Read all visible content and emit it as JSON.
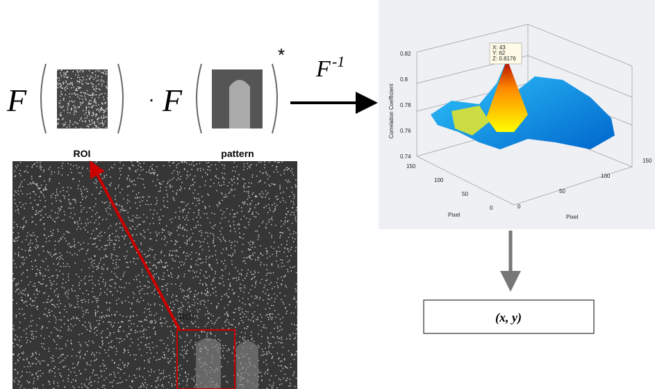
{
  "formula": {
    "operator1": "F",
    "dot": "·",
    "operator2": "F",
    "conjugate": "*",
    "inverse": "F",
    "inverse_exp": "-1"
  },
  "labels": {
    "roi": "ROI",
    "pattern": "pattern"
  },
  "image": {
    "roi_label": "ROI"
  },
  "plot": {
    "z_label": "Correlation Coefficient",
    "z_ticks": [
      "0.82",
      "0.8",
      "0.78",
      "0.76",
      "0.74"
    ],
    "x_label": "Pixel",
    "x_ticks": [
      "150",
      "100",
      "50",
      "0"
    ],
    "y_label": "Pixel",
    "y_ticks": [
      "0",
      "50",
      "100",
      "150"
    ],
    "datatip": [
      "X: 43",
      "Y: 62",
      "Z: 0.8176"
    ]
  },
  "output": "(x, y)"
}
